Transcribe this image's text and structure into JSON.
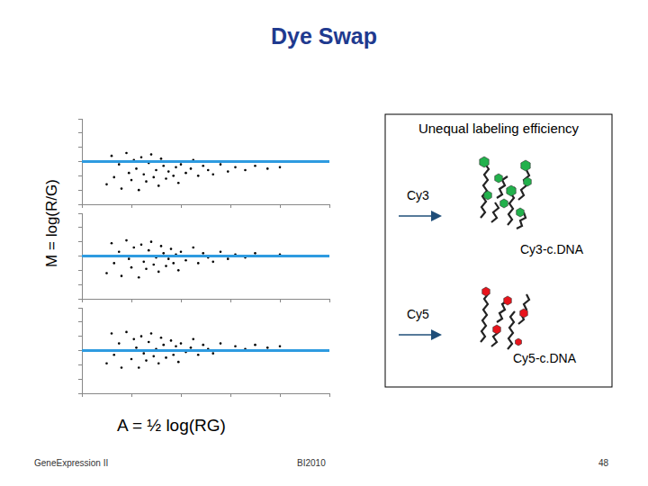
{
  "title": "Dye Swap",
  "axes": {
    "y_label": "M = log(R/G)",
    "x_label": "A = ½ log(RG)"
  },
  "chart_data": [
    {
      "type": "scatter",
      "color": "#000000",
      "x": [
        7.0,
        7.2,
        7.3,
        7.5,
        7.6,
        7.8,
        7.9,
        8.0,
        8.1,
        8.2,
        8.3,
        8.4,
        8.5,
        8.6,
        8.7,
        8.8,
        8.9,
        9.0,
        9.1,
        9.2,
        9.3,
        9.4,
        9.5,
        9.6,
        9.7,
        9.8,
        9.9,
        10.0,
        10.2,
        10.4,
        10.5,
        10.7,
        10.9,
        11.1,
        11.3,
        11.6,
        11.9,
        12.2,
        12.6,
        13.0,
        13.5,
        14.0
      ],
      "values": [
        -1.6,
        0.4,
        -1.1,
        -0.2,
        -1.9,
        0.6,
        -0.8,
        -1.3,
        0.1,
        -0.5,
        -2.0,
        0.3,
        -0.9,
        -1.4,
        -0.1,
        0.5,
        -1.1,
        -0.6,
        -1.7,
        0.2,
        -0.3,
        -1.2,
        -0.7,
        0.0,
        -1.0,
        -0.4,
        -1.5,
        -0.2,
        -0.8,
        -0.5,
        0.1,
        -1.0,
        -0.3,
        -0.6,
        -0.9,
        -0.2,
        -0.7,
        -0.4,
        -0.6,
        -0.3,
        -0.5,
        -0.4
      ],
      "xlim": [
        6,
        16
      ],
      "ylim": [
        -3,
        3
      ],
      "xticks": [
        6,
        8,
        10,
        12,
        14,
        16
      ],
      "yticks": [
        -3,
        -2,
        -1,
        0,
        1,
        2,
        3
      ],
      "grid": false,
      "tick_labels": false,
      "reference_line": {
        "y": 0,
        "color": "#2e9be0"
      }
    },
    {
      "type": "scatter",
      "color": "#000000",
      "x": [
        7.0,
        7.2,
        7.3,
        7.5,
        7.6,
        7.8,
        7.9,
        8.0,
        8.1,
        8.2,
        8.3,
        8.4,
        8.5,
        8.6,
        8.7,
        8.8,
        8.9,
        9.0,
        9.1,
        9.2,
        9.3,
        9.4,
        9.5,
        9.6,
        9.7,
        9.8,
        9.9,
        10.0,
        10.2,
        10.4,
        10.5,
        10.7,
        10.9,
        11.1,
        11.3,
        11.6,
        11.9,
        12.2,
        12.6,
        13.0,
        13.5,
        14.0
      ],
      "values": [
        -1.2,
        0.9,
        -0.5,
        0.3,
        -1.4,
        1.1,
        -0.2,
        -0.8,
        0.6,
        0.0,
        -1.5,
        0.8,
        -0.4,
        -0.9,
        0.4,
        1.0,
        -0.6,
        -0.1,
        -1.1,
        0.7,
        0.2,
        -0.7,
        -0.2,
        0.5,
        -0.5,
        0.1,
        -1.0,
        0.3,
        -0.3,
        0.0,
        0.6,
        -0.5,
        0.2,
        -0.1,
        -0.4,
        0.3,
        -0.2,
        0.1,
        -0.1,
        0.2,
        0.0,
        0.1
      ],
      "xlim": [
        6,
        16
      ],
      "ylim": [
        -3,
        3
      ],
      "xticks": [
        6,
        8,
        10,
        12,
        14,
        16
      ],
      "yticks": [
        -3,
        -2,
        -1,
        0,
        1,
        2,
        3
      ],
      "grid": false,
      "tick_labels": false,
      "reference_line": {
        "y": 0,
        "color": "#2e9be0"
      }
    },
    {
      "type": "scatter",
      "color": "#000000",
      "x": [
        7.0,
        7.2,
        7.3,
        7.5,
        7.6,
        7.8,
        7.9,
        8.0,
        8.1,
        8.2,
        8.3,
        8.4,
        8.5,
        8.6,
        8.7,
        8.8,
        8.9,
        9.0,
        9.1,
        9.2,
        9.3,
        9.4,
        9.5,
        9.6,
        9.7,
        9.8,
        9.9,
        10.0,
        10.2,
        10.4,
        10.5,
        10.7,
        10.9,
        11.1,
        11.3,
        11.6,
        11.9,
        12.2,
        12.6,
        13.0,
        13.5,
        14.0
      ],
      "values": [
        -0.9,
        1.2,
        -0.3,
        0.5,
        -1.2,
        1.3,
        0.0,
        -0.6,
        0.8,
        0.2,
        -1.2,
        1.0,
        -0.2,
        -0.7,
        0.6,
        1.2,
        -0.4,
        0.1,
        -0.9,
        0.9,
        0.4,
        -0.5,
        0.0,
        0.7,
        -0.3,
        0.3,
        -0.8,
        0.5,
        -0.1,
        0.2,
        0.8,
        -0.3,
        0.4,
        0.1,
        -0.2,
        0.5,
        0.0,
        0.3,
        0.1,
        0.4,
        0.2,
        0.3
      ],
      "xlim": [
        6,
        16
      ],
      "ylim": [
        -3,
        3
      ],
      "xticks": [
        6,
        8,
        10,
        12,
        14,
        16
      ],
      "yticks": [
        -3,
        -2,
        -1,
        0,
        1,
        2,
        3
      ],
      "grid": false,
      "tick_labels": false,
      "reference_line": {
        "y": 0,
        "color": "#2e9be0"
      }
    }
  ],
  "diagram": {
    "title": "Unequal labeling efficiency",
    "labels": [
      {
        "dye": "Cy3",
        "product": "Cy3-c.DNA",
        "color": "#22b14c"
      },
      {
        "dye": "Cy5",
        "product": "Cy5-c.DNA",
        "color": "#e8141c"
      }
    ]
  },
  "footer": {
    "left": "GeneExpression II",
    "center": "BI2010",
    "right": "48"
  }
}
